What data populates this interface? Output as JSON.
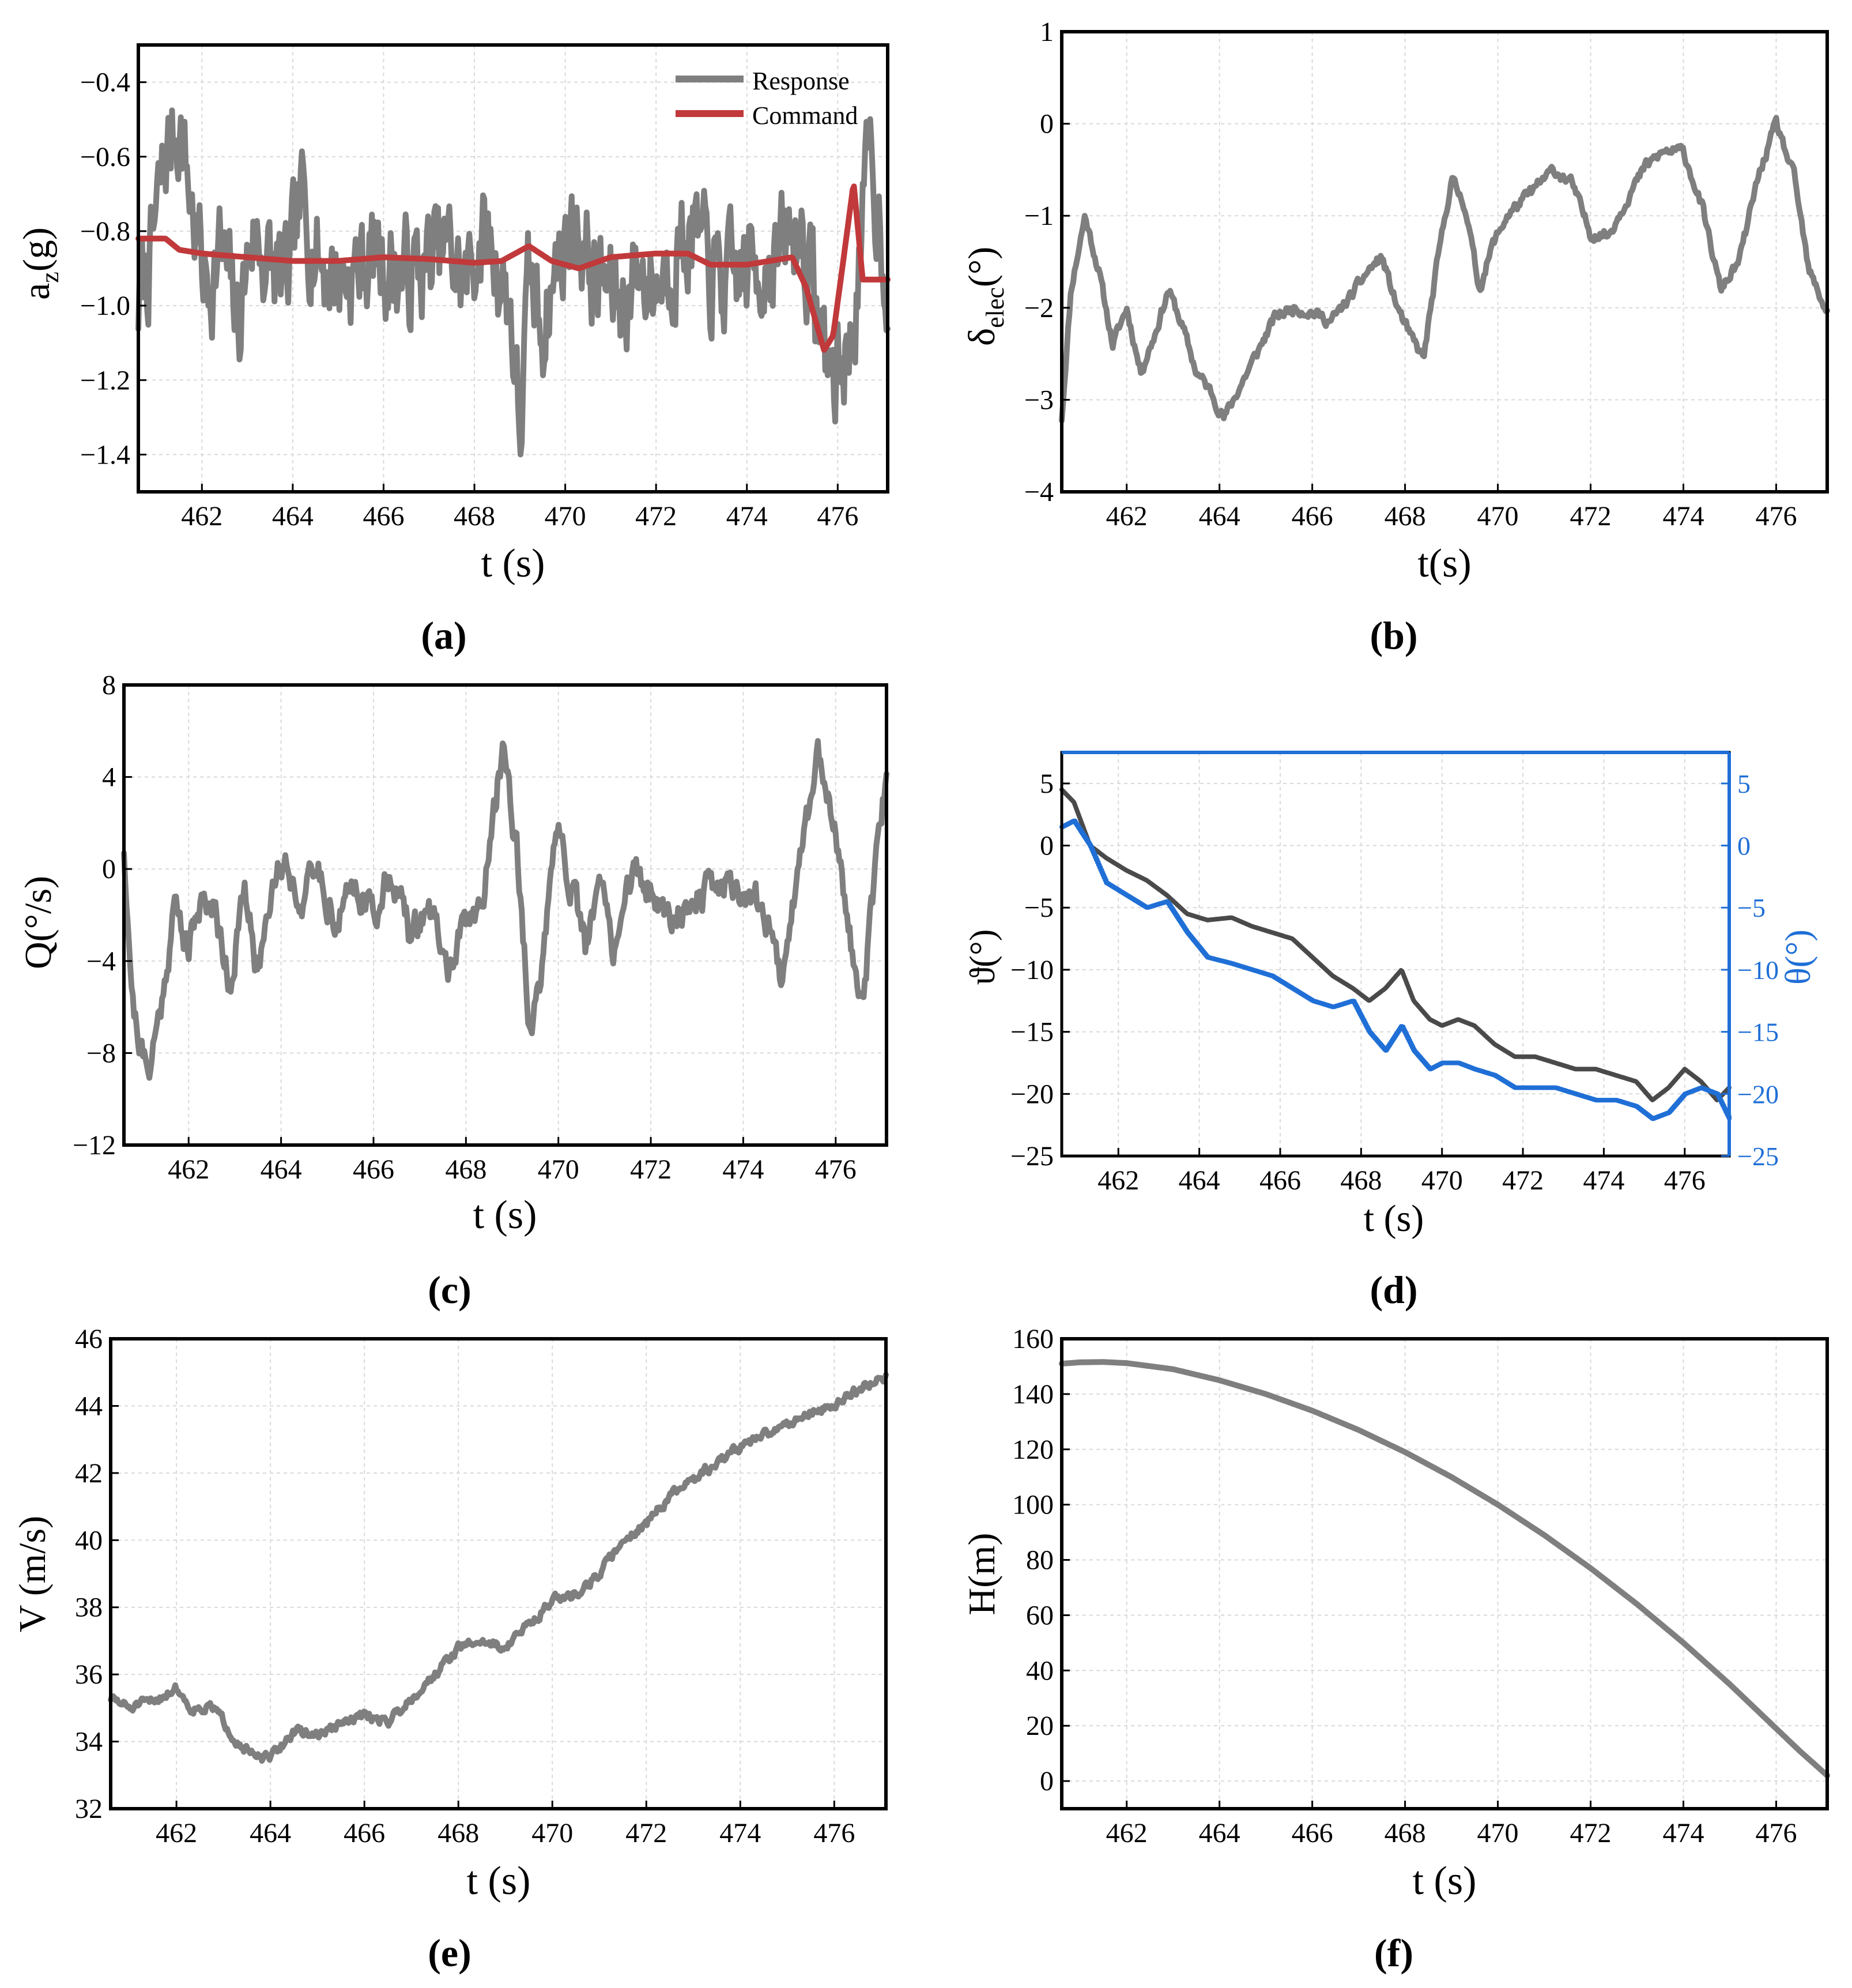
{
  "figure": {
    "panels": [
      {
        "id": "a",
        "caption": "(a)"
      },
      {
        "id": "b",
        "caption": "(b)"
      },
      {
        "id": "c",
        "caption": "(c)"
      },
      {
        "id": "d",
        "caption": "(d)"
      },
      {
        "id": "e",
        "caption": "(e)"
      },
      {
        "id": "f",
        "caption": "(f)"
      }
    ]
  },
  "colors": {
    "response": "#7f7f7f",
    "command": "#c1393b",
    "pitch_dark": "#4a4a4a",
    "pitch_blue": "#1f6fd6",
    "grid": "#d9d9d9",
    "axis": "#000000"
  },
  "chart_data": [
    {
      "panel": "a",
      "type": "line",
      "caption": "(a)",
      "xlabel": "t (s)",
      "ylabel": "a",
      "ylabel_sub": "z",
      "ylabel_tail": "(g)",
      "xlim": [
        460.6,
        477.1
      ],
      "ylim": [
        -1.5,
        -0.3
      ],
      "xticks": [
        462,
        464,
        466,
        468,
        470,
        472,
        474,
        476
      ],
      "yticks": [
        -1.4,
        -1.2,
        -1.0,
        -0.8,
        -0.6,
        -0.4
      ],
      "ytick_labels": [
        "−1.4",
        "−1.2",
        "−1.0",
        "−0.8",
        "−0.6",
        "−0.4"
      ],
      "legend": {
        "position": "top-right",
        "entries": [
          "Response",
          "Command"
        ]
      },
      "series": [
        {
          "name": "Response",
          "color": "#7f7f7f",
          "noise": 0.12,
          "seed": 7,
          "x": [
            460.6,
            460.9,
            461.2,
            461.5,
            461.8,
            462.1,
            462.4,
            462.8,
            463.1,
            463.5,
            463.9,
            464.2,
            464.6,
            465.0,
            465.4,
            465.8,
            466.2,
            466.6,
            467.0,
            467.4,
            467.8,
            468.1,
            468.4,
            468.8,
            469.0,
            469.2,
            469.5,
            469.9,
            470.3,
            470.6,
            470.9,
            471.2,
            471.6,
            472.0,
            472.4,
            472.8,
            473.2,
            473.6,
            474.0,
            474.4,
            474.8,
            475.2,
            475.6,
            475.9,
            476.3,
            476.7,
            477.1
          ],
          "y": [
            -1.0,
            -0.85,
            -0.6,
            -0.5,
            -0.75,
            -0.95,
            -0.85,
            -1.05,
            -0.8,
            -0.9,
            -0.95,
            -0.72,
            -0.88,
            -0.92,
            -0.9,
            -0.86,
            -0.9,
            -0.92,
            -0.88,
            -0.85,
            -0.95,
            -0.82,
            -0.85,
            -1.0,
            -1.35,
            -0.95,
            -1.05,
            -0.85,
            -0.78,
            -0.92,
            -0.95,
            -1.0,
            -0.9,
            -0.95,
            -0.85,
            -0.8,
            -0.92,
            -0.95,
            -0.9,
            -0.88,
            -0.85,
            -0.8,
            -1.05,
            -1.2,
            -1.1,
            -0.6,
            -0.92
          ]
        },
        {
          "name": "Command",
          "color": "#c1393b",
          "noise": 0.0,
          "seed": 3,
          "x": [
            460.6,
            461.2,
            461.5,
            462.0,
            463.0,
            464.0,
            465.0,
            466.0,
            467.0,
            468.0,
            468.6,
            469.2,
            469.7,
            470.3,
            471.0,
            472.0,
            472.7,
            473.2,
            474.0,
            475.0,
            475.3,
            475.7,
            475.9,
            476.1,
            476.35,
            476.55,
            477.1
          ],
          "y": [
            -0.82,
            -0.82,
            -0.85,
            -0.86,
            -0.87,
            -0.88,
            -0.88,
            -0.87,
            -0.875,
            -0.885,
            -0.88,
            -0.84,
            -0.88,
            -0.9,
            -0.87,
            -0.86,
            -0.86,
            -0.89,
            -0.89,
            -0.87,
            -0.95,
            -1.12,
            -1.08,
            -0.9,
            -0.67,
            -0.93,
            -0.93
          ]
        }
      ]
    },
    {
      "panel": "b",
      "type": "line",
      "caption": "(b)",
      "xlabel": "t(s)",
      "ylabel": "δ",
      "ylabel_sub": "elec",
      "ylabel_tail": "(°)",
      "xlim": [
        460.6,
        477.1
      ],
      "ylim": [
        -4,
        1
      ],
      "xticks": [
        462,
        464,
        466,
        468,
        470,
        472,
        474,
        476
      ],
      "yticks": [
        -4,
        -3,
        -2,
        -1,
        0,
        1
      ],
      "ytick_labels": [
        "−4",
        "−3",
        "−2",
        "−1",
        "0",
        "1"
      ],
      "series": [
        {
          "name": "δelec",
          "color": "#7f7f7f",
          "noise": 0.05,
          "seed": 11,
          "x": [
            460.6,
            460.8,
            461.1,
            461.4,
            461.7,
            462.0,
            462.3,
            462.6,
            462.9,
            463.2,
            463.5,
            463.8,
            464.1,
            464.4,
            464.8,
            465.2,
            465.6,
            466.0,
            466.4,
            466.8,
            467.2,
            467.5,
            467.8,
            468.1,
            468.4,
            468.7,
            469.0,
            469.3,
            469.6,
            469.9,
            470.2,
            470.5,
            470.8,
            471.2,
            471.6,
            472.0,
            472.4,
            472.8,
            473.2,
            473.6,
            474.0,
            474.4,
            474.8,
            475.2,
            475.6,
            476.0,
            476.4,
            476.7,
            477.1
          ],
          "y": [
            -3.2,
            -1.8,
            -1.0,
            -1.6,
            -2.4,
            -2.0,
            -2.7,
            -2.3,
            -1.8,
            -2.2,
            -2.7,
            -2.9,
            -3.2,
            -2.9,
            -2.5,
            -2.1,
            -2.0,
            -2.05,
            -2.15,
            -1.9,
            -1.6,
            -1.45,
            -1.95,
            -2.3,
            -2.55,
            -1.5,
            -0.6,
            -0.9,
            -1.8,
            -1.3,
            -1.0,
            -0.85,
            -0.7,
            -0.5,
            -0.65,
            -1.2,
            -1.2,
            -0.8,
            -0.45,
            -0.3,
            -0.3,
            -0.9,
            -1.8,
            -1.5,
            -0.6,
            0.0,
            -0.6,
            -1.6,
            -2.05
          ]
        }
      ]
    },
    {
      "panel": "c",
      "type": "line",
      "caption": "(c)",
      "xlabel": "t (s)",
      "ylabel": "Q(°/s)",
      "ylabel_sub": "",
      "ylabel_tail": "",
      "xlim": [
        460.6,
        477.1
      ],
      "ylim": [
        -12,
        8
      ],
      "xticks": [
        462,
        464,
        466,
        468,
        470,
        472,
        474,
        476
      ],
      "yticks": [
        -12,
        -8,
        -4,
        0,
        4,
        8
      ],
      "ytick_labels": [
        "−12",
        "−8",
        "−4",
        "0",
        "4",
        "8"
      ],
      "series": [
        {
          "name": "Q",
          "color": "#7f7f7f",
          "noise": 0.6,
          "seed": 21,
          "x": [
            460.6,
            460.8,
            461.1,
            461.4,
            461.7,
            462.0,
            462.3,
            462.6,
            462.9,
            463.2,
            463.5,
            463.8,
            464.1,
            464.4,
            464.8,
            465.2,
            465.6,
            466.0,
            466.4,
            466.8,
            467.2,
            467.6,
            468.0,
            468.4,
            468.8,
            469.1,
            469.4,
            469.7,
            470.0,
            470.3,
            470.6,
            470.9,
            471.2,
            471.6,
            472.0,
            472.4,
            472.8,
            473.2,
            473.6,
            474.0,
            474.4,
            474.8,
            475.2,
            475.6,
            476.0,
            476.3,
            476.6,
            476.9,
            477.1
          ],
          "y": [
            1.0,
            -6.0,
            -9.0,
            -6.0,
            -1.5,
            -3.5,
            -1.0,
            -2.0,
            -5.0,
            -1.0,
            -4.5,
            -0.5,
            0.5,
            -1.5,
            0.0,
            -2.5,
            -0.5,
            -2.0,
            0.0,
            -3.0,
            -1.5,
            -4.5,
            -2.5,
            -1.0,
            5.5,
            1.0,
            -7.5,
            -3.5,
            2.0,
            -1.0,
            -3.5,
            -0.5,
            -3.5,
            0.0,
            -1.0,
            -2.0,
            -1.5,
            -1.0,
            -0.5,
            -1.0,
            -1.5,
            -4.5,
            0.0,
            5.0,
            2.0,
            -3.0,
            -5.5,
            0.5,
            4.0
          ]
        }
      ]
    },
    {
      "panel": "d",
      "type": "line",
      "caption": "(d)",
      "xlabel": "t (s)",
      "ylabel": "ϑ(°)",
      "ylabel_right": "θ(°)",
      "xlim": [
        460.6,
        477.1
      ],
      "ylim": [
        -25,
        7.5
      ],
      "xticks": [
        462,
        464,
        466,
        468,
        470,
        472,
        474,
        476
      ],
      "yticks": [
        -25,
        -20,
        -15,
        -10,
        -5,
        0,
        5
      ],
      "ytick_labels": [
        "−25",
        "−20",
        "−15",
        "−10",
        "−5",
        "0",
        "5"
      ],
      "y2lim": [
        -25,
        7.5
      ],
      "y2ticks": [
        -25,
        -20,
        -15,
        -10,
        -5,
        0,
        5
      ],
      "y2tick_labels": [
        "−25",
        "−20",
        "−15",
        "−10",
        "−5",
        "0",
        "5"
      ],
      "series": [
        {
          "name": "ϑ",
          "color": "#4a4a4a",
          "noise": 0.0,
          "seed": 31,
          "x": [
            460.6,
            460.9,
            461.3,
            461.7,
            462.2,
            462.7,
            463.2,
            463.7,
            464.2,
            464.8,
            465.3,
            465.8,
            466.3,
            466.8,
            467.3,
            467.8,
            468.2,
            468.6,
            469.0,
            469.3,
            469.7,
            470.0,
            470.4,
            470.8,
            471.3,
            471.8,
            472.3,
            472.8,
            473.3,
            473.8,
            474.3,
            474.8,
            475.2,
            475.6,
            476.0,
            476.4,
            476.8,
            477.1
          ],
          "y": [
            4.5,
            3.5,
            0.0,
            -1.0,
            -2.0,
            -2.8,
            -4.0,
            -5.5,
            -6.0,
            -5.8,
            -6.5,
            -7.0,
            -7.5,
            -9.0,
            -10.5,
            -11.5,
            -12.5,
            -11.5,
            -10.0,
            -12.5,
            -14.0,
            -14.5,
            -14.0,
            -14.5,
            -16.0,
            -17.0,
            -17.0,
            -17.5,
            -18.0,
            -18.0,
            -18.5,
            -19.0,
            -20.5,
            -19.5,
            -18.0,
            -19.0,
            -20.5,
            -19.5
          ]
        },
        {
          "name": "θ",
          "color": "#1f6fd6",
          "noise": 0.0,
          "seed": 41,
          "step": 0.12,
          "x": [
            460.6,
            460.9,
            461.3,
            461.7,
            462.2,
            462.7,
            463.2,
            463.7,
            464.2,
            464.8,
            465.3,
            465.8,
            466.3,
            466.8,
            467.3,
            467.8,
            468.2,
            468.6,
            469.0,
            469.3,
            469.7,
            470.0,
            470.4,
            470.8,
            471.3,
            471.8,
            472.3,
            472.8,
            473.3,
            473.8,
            474.3,
            474.8,
            475.2,
            475.6,
            476.0,
            476.4,
            476.8,
            477.1
          ],
          "y": [
            1.5,
            2.0,
            0.0,
            -3.0,
            -4.0,
            -5.0,
            -4.5,
            -7.0,
            -9.0,
            -9.5,
            -10.0,
            -10.5,
            -11.5,
            -12.5,
            -13.0,
            -12.5,
            -15.0,
            -16.5,
            -14.5,
            -16.5,
            -18.0,
            -17.5,
            -17.5,
            -18.0,
            -18.5,
            -19.5,
            -19.5,
            -19.5,
            -20.0,
            -20.5,
            -20.5,
            -21.0,
            -22.0,
            -21.5,
            -20.0,
            -19.5,
            -20.0,
            -22.0
          ]
        }
      ]
    },
    {
      "panel": "e",
      "type": "line",
      "caption": "(e)",
      "xlabel": "t (s)",
      "ylabel": "V (m/s)",
      "ylabel_sub": "",
      "ylabel_tail": "",
      "xlim": [
        460.6,
        477.1
      ],
      "ylim": [
        32,
        46
      ],
      "xticks": [
        462,
        464,
        466,
        468,
        470,
        472,
        474,
        476
      ],
      "yticks": [
        32,
        34,
        36,
        38,
        40,
        42,
        44,
        46
      ],
      "ytick_labels": [
        "32",
        "34",
        "36",
        "38",
        "40",
        "42",
        "44",
        "46"
      ],
      "series": [
        {
          "name": "V",
          "color": "#7f7f7f",
          "noise": 0.12,
          "seed": 51,
          "x": [
            460.6,
            461.0,
            461.5,
            462.0,
            462.3,
            462.8,
            463.3,
            463.7,
            464.0,
            464.5,
            465.0,
            465.5,
            466.0,
            466.5,
            467.0,
            467.5,
            468.0,
            468.5,
            469.0,
            469.5,
            470.0,
            470.5,
            471.0,
            471.5,
            472.0,
            472.5,
            473.0,
            473.5,
            474.0,
            474.5,
            475.0,
            475.5,
            476.0,
            476.5,
            477.1
          ],
          "y": [
            35.3,
            35.0,
            35.2,
            35.6,
            35.0,
            35.0,
            34.0,
            33.5,
            33.5,
            34.3,
            34.2,
            34.5,
            34.8,
            34.6,
            35.3,
            36.0,
            36.8,
            37.0,
            36.8,
            37.5,
            38.2,
            38.4,
            39.0,
            40.0,
            40.5,
            41.3,
            41.8,
            42.3,
            42.8,
            43.1,
            43.5,
            43.8,
            44.0,
            44.5,
            44.9
          ]
        }
      ]
    },
    {
      "panel": "f",
      "type": "line",
      "caption": "(f)",
      "xlabel": "t (s)",
      "ylabel": "H(m)",
      "ylabel_sub": "",
      "ylabel_tail": "",
      "xlim": [
        460.6,
        477.1
      ],
      "ylim": [
        -10,
        160
      ],
      "xticks": [
        462,
        464,
        466,
        468,
        470,
        472,
        474,
        476
      ],
      "yticks": [
        0,
        20,
        40,
        60,
        80,
        100,
        120,
        140,
        160
      ],
      "ytick_labels": [
        "0",
        "20",
        "40",
        "60",
        "80",
        "100",
        "120",
        "140",
        "160"
      ],
      "series": [
        {
          "name": "H",
          "color": "#7f7f7f",
          "noise": 0.0,
          "seed": 61,
          "x": [
            460.6,
            461.0,
            461.5,
            462.0,
            463.0,
            464.0,
            465.0,
            466.0,
            467.0,
            468.0,
            469.0,
            470.0,
            471.0,
            472.0,
            473.0,
            474.0,
            475.0,
            476.0,
            476.5,
            477.1
          ],
          "y": [
            151,
            151.5,
            151.6,
            151.2,
            149,
            145,
            140,
            134,
            127,
            119,
            110,
            100,
            89,
            77,
            64,
            50,
            35,
            19,
            11,
            2
          ]
        }
      ]
    }
  ]
}
